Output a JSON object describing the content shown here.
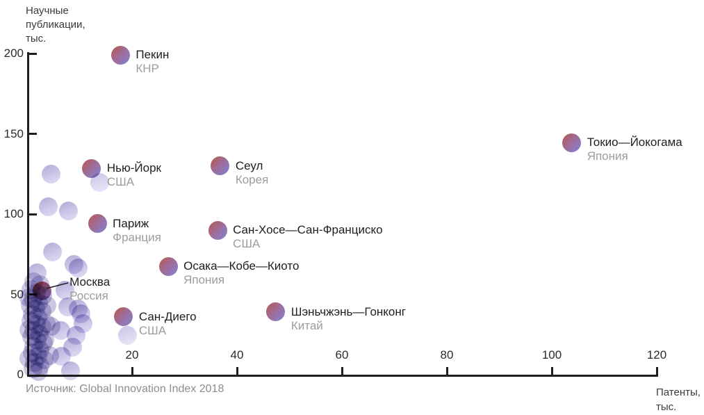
{
  "colors": {
    "bubble_red": "#b35c57",
    "bubble_purple": "#8d7abc",
    "moscow_red": "#b14b47",
    "light_bubble": "#b3a8d7",
    "axis": "#1f1f1f",
    "city_text": "#1e1e1e",
    "country_text": "#9c9c9c",
    "source_text": "#8d8d8d"
  },
  "chart_data": {
    "type": "scatter",
    "title": "",
    "ylabel": "Научные публикации, тыс.",
    "ylabel_lines": [
      "Научные",
      "публикации,",
      "тыс."
    ],
    "xlabel": "Патенты, тыс.",
    "xlabel_lines": [
      "Патенты,",
      "тыс."
    ],
    "source": "Источник: Global Innovation Index 2018",
    "xlim": [
      0,
      120
    ],
    "ylim": [
      0,
      200
    ],
    "xticks": [
      20,
      40,
      60,
      80,
      100,
      120
    ],
    "yticks": [
      0,
      50,
      100,
      150,
      200
    ],
    "origin_label": "0",
    "grid": false,
    "legend": "none",
    "labeled_points": [
      {
        "city": "Пекин",
        "country": "КНР",
        "x": 17.8,
        "y": 199
      },
      {
        "city": "Токио—Йокогама",
        "country": "Япония",
        "x": 103.8,
        "y": 144.5
      },
      {
        "city": "Сеул",
        "country": "Корея",
        "x": 36.8,
        "y": 130
      },
      {
        "city": "Нью-Йорк",
        "country": "США",
        "x": 12.3,
        "y": 128.5
      },
      {
        "city": "Париж",
        "country": "Франция",
        "x": 13.4,
        "y": 94
      },
      {
        "city": "Сан-Хосе—Сан-Франциско",
        "country": "США",
        "x": 36.3,
        "y": 90
      },
      {
        "city": "Осака—Кобе—Киото",
        "country": "Япония",
        "x": 26.9,
        "y": 67.5
      },
      {
        "city": "Москва",
        "country": "Россия",
        "x": 2.8,
        "y": 52,
        "highlight": true,
        "callout": true,
        "label_dx": 40,
        "label_dy": -23
      },
      {
        "city": "Шэньчжэнь—Гонконг",
        "country": "Китай",
        "x": 47.4,
        "y": 39
      },
      {
        "city": "Сан-Диего",
        "country": "США",
        "x": 18.4,
        "y": 36
      }
    ],
    "background_points": {
      "scattered": [
        [
          4.6,
          125
        ],
        [
          4.1,
          104.5
        ],
        [
          7.9,
          102
        ],
        [
          4.8,
          76.5
        ],
        [
          9,
          68.5
        ],
        [
          9.8,
          66.5
        ],
        [
          1.9,
          63.5
        ],
        [
          7.2,
          52.5
        ],
        [
          7.7,
          42
        ],
        [
          9.8,
          41
        ],
        [
          10.3,
          38
        ],
        [
          10.7,
          32
        ],
        [
          6.4,
          27.5
        ],
        [
          9.4,
          24.5
        ],
        [
          8.7,
          17
        ],
        [
          6.5,
          11.5
        ],
        [
          8.3,
          2.5
        ]
      ],
      "faint": [
        [
          13.8,
          119.5
        ],
        [
          19.1,
          24.5
        ]
      ],
      "column": [
        [
          1.2,
          58
        ],
        [
          2.4,
          56
        ],
        [
          0.7,
          53
        ],
        [
          1.8,
          51
        ],
        [
          3,
          49
        ],
        [
          1.1,
          47
        ],
        [
          2.2,
          45
        ],
        [
          0.6,
          43
        ],
        [
          1.6,
          41
        ],
        [
          2.8,
          39.5
        ],
        [
          1,
          37.5
        ],
        [
          2,
          35.5
        ],
        [
          0.7,
          33.5
        ],
        [
          1.8,
          31.5
        ],
        [
          2.9,
          29.5
        ],
        [
          1.2,
          27.5
        ],
        [
          2.3,
          25.5
        ],
        [
          0.8,
          23.5
        ],
        [
          1.9,
          21.5
        ],
        [
          3.1,
          19.5
        ],
        [
          1.3,
          17.5
        ],
        [
          2.4,
          15.5
        ],
        [
          1,
          13.5
        ],
        [
          2.1,
          11.5
        ],
        [
          3.2,
          9.5
        ],
        [
          1.4,
          7.5
        ],
        [
          2.5,
          5.5
        ],
        [
          1.1,
          3.5
        ],
        [
          2.2,
          2
        ],
        [
          3.4,
          22
        ],
        [
          3.6,
          32
        ],
        [
          3.8,
          43
        ],
        [
          4.3,
          12
        ],
        [
          4.6,
          30
        ],
        [
          0.3,
          48
        ],
        [
          0.3,
          28
        ],
        [
          0.3,
          10
        ]
      ]
    }
  }
}
